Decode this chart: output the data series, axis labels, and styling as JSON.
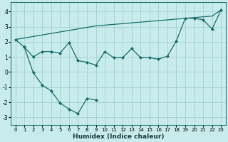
{
  "xlabel": "Humidex (Indice chaleur)",
  "bg_color": "#c8ecec",
  "grid_color": "#a8d4d4",
  "line_color": "#1a6b6b",
  "x_all": [
    0,
    1,
    2,
    3,
    4,
    5,
    6,
    7,
    8,
    9,
    10,
    11,
    12,
    13,
    14,
    15,
    16,
    17,
    18,
    19,
    20,
    21,
    22,
    23
  ],
  "line_straight": [
    2.15,
    2.25,
    2.35,
    2.45,
    2.55,
    2.65,
    2.75,
    2.85,
    2.95,
    3.05,
    3.1,
    3.15,
    3.2,
    3.25,
    3.3,
    3.35,
    3.4,
    3.45,
    3.5,
    3.55,
    3.6,
    3.65,
    3.7,
    4.1
  ],
  "line_wiggly_x": [
    0,
    1,
    2,
    3,
    4,
    5,
    6,
    7,
    8,
    9,
    10,
    11,
    12,
    13,
    14,
    15,
    16,
    17,
    18,
    19,
    20,
    21,
    22,
    23
  ],
  "line_wiggly": [
    2.15,
    1.65,
    1.0,
    1.35,
    1.35,
    1.25,
    1.95,
    0.75,
    0.65,
    0.45,
    1.35,
    0.95,
    0.95,
    1.55,
    0.95,
    0.95,
    0.85,
    1.05,
    2.05,
    3.55,
    3.55,
    3.45,
    2.85,
    4.1
  ],
  "line_dip_x": [
    1,
    2,
    3,
    4,
    5,
    6,
    7,
    8,
    9
  ],
  "line_dip": [
    1.65,
    -0.05,
    -0.85,
    -1.25,
    -2.05,
    -2.45,
    -2.75,
    -1.75,
    -1.85
  ],
  "ylim": [
    -3.5,
    4.6
  ],
  "xlim": [
    -0.5,
    23.5
  ],
  "yticks": [
    -3,
    -2,
    -1,
    0,
    1,
    2,
    3,
    4
  ],
  "xticks": [
    0,
    1,
    2,
    3,
    4,
    5,
    6,
    7,
    8,
    9,
    10,
    11,
    12,
    13,
    14,
    15,
    16,
    17,
    18,
    19,
    20,
    21,
    22,
    23
  ]
}
